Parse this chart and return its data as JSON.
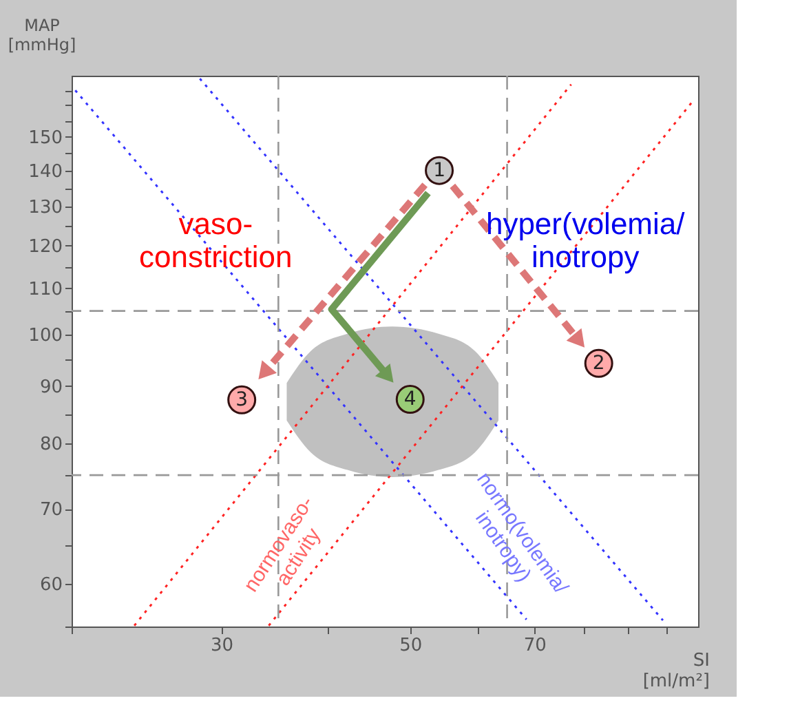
{
  "chart_data": {
    "type": "scatter",
    "xlabel": "SI\n[ml/m²]",
    "ylabel": "MAP\n[mmHg]",
    "log": "xy",
    "grid": false,
    "xlim": [
      20,
      109
    ],
    "ylim": [
      55,
      170
    ],
    "xticks": [
      {
        "value": 20,
        "label": null
      },
      30,
      {
        "value": 40,
        "label": null
      },
      50,
      {
        "value": 60,
        "label": null
      },
      70,
      {
        "value": 80,
        "label": null
      },
      {
        "value": 90,
        "label": null
      },
      {
        "value": 100,
        "label": null
      }
    ],
    "yticks": [
      {
        "value": 55,
        "label": null
      },
      60,
      {
        "value": 65,
        "label": null
      },
      70,
      {
        "value": 75,
        "label": null
      },
      80,
      {
        "value": 85,
        "label": null
      },
      90,
      {
        "value": 95,
        "label": null
      },
      100,
      {
        "value": 105,
        "label": null
      },
      110,
      {
        "value": 115,
        "label": null
      },
      120,
      {
        "value": 125,
        "label": null
      },
      130,
      {
        "value": 135,
        "label": null
      },
      140,
      {
        "value": 145,
        "label": null
      },
      150,
      {
        "value": 155,
        "label": null
      },
      {
        "value": 160,
        "label": null
      },
      {
        "value": 165,
        "label": null
      }
    ],
    "ref_lines": [
      {
        "axis": "x",
        "value": 35,
        "color": "#999999",
        "line_style": "dashed"
      },
      {
        "axis": "x",
        "value": 65,
        "color": "#999999",
        "line_style": "dashed"
      },
      {
        "axis": "y",
        "value": 105,
        "color": "#999999",
        "line_style": "dashed"
      },
      {
        "axis": "y",
        "value": 75,
        "color": "#999999",
        "line_style": "dashed"
      }
    ],
    "series": [
      {
        "type": "area",
        "color": "#c0c0c0",
        "x": [
          35.8,
          38.2,
          42.2,
          47.6,
          54.0,
          59.6,
          63.5
        ],
        "values": [
          null,
          null,
          null,
          null,
          null,
          null,
          null
        ],
        "lower": [
          83.9,
          78.6,
          75.8,
          74.7,
          75.8,
          78.6,
          83.9
        ],
        "upper": [
          90.6,
          96.7,
          100.2,
          101.7,
          100.2,
          96.7,
          90.6
        ]
      },
      {
        "type": "line",
        "color": "#3333ff",
        "line_style": "dotted",
        "marker": "none",
        "x": [
          20.2,
          68.5
        ],
        "values": [
          165,
          55.8
        ]
      },
      {
        "type": "line",
        "color": "#3333ff",
        "line_style": "dotted",
        "marker": "none",
        "x": [
          28.3,
          99.1
        ],
        "values": [
          169,
          55.7
        ]
      },
      {
        "type": "line",
        "color": "#ff2222",
        "line_style": "dotted",
        "marker": "none",
        "x": [
          23.7,
          77.3
        ],
        "values": [
          55.1,
          167
        ]
      },
      {
        "type": "line",
        "color": "#ff2222",
        "line_style": "dotted",
        "marker": "none",
        "x": [
          34.1,
          107.9
        ],
        "values": [
          55.1,
          162
        ]
      },
      {
        "name": "1",
        "color": "#c8c8c8",
        "marker": "circle",
        "x": [
          54.1
        ],
        "values": [
          140
        ]
      },
      {
        "name": "2",
        "color": "#ffaaaa",
        "marker": "circle",
        "x": [
          83.3
        ],
        "values": [
          94.3
        ]
      },
      {
        "name": "3",
        "color": "#ffaaaa",
        "marker": "circle",
        "x": [
          31.7
        ],
        "values": [
          87.5
        ]
      },
      {
        "name": "4",
        "color": "#99cc77",
        "marker": "circle",
        "x": [
          50
        ],
        "values": [
          87.6
        ]
      }
    ],
    "annotations": [
      "vaso-\nconstriction",
      "hyper(volemia/\ninotropy",
      "normovaso-\nactivity",
      "normo(volemia/\ninotropy)"
    ]
  }
}
